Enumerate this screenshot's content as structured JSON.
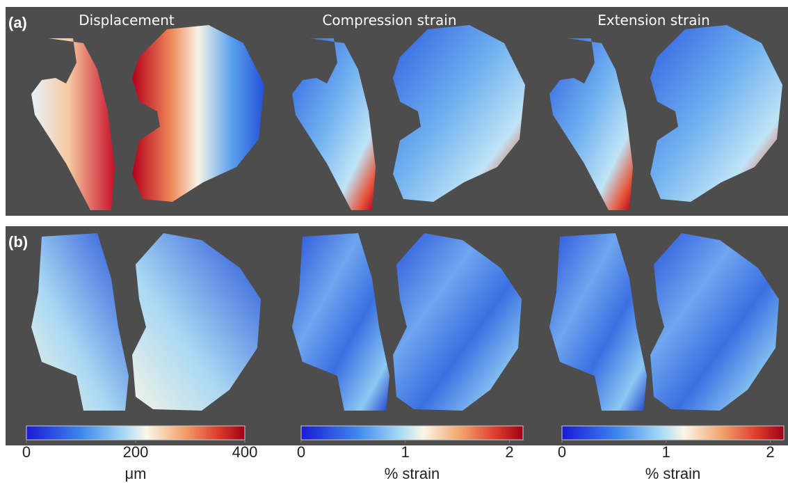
{
  "panels": [
    {
      "label": "(a)"
    },
    {
      "label": "(b)"
    }
  ],
  "column_titles": [
    "Displacement",
    "Compression strain",
    "Extension strain"
  ],
  "colorbars": [
    {
      "lim": [
        0,
        400
      ],
      "ticks": [
        0,
        200,
        400
      ],
      "label": "μm"
    },
    {
      "lim": [
        0,
        2.13
      ],
      "ticks": [
        0,
        1,
        2
      ],
      "label": "% strain"
    },
    {
      "lim": [
        0,
        2.13
      ],
      "ticks": [
        0,
        1,
        2
      ],
      "label": "% strain"
    }
  ]
}
